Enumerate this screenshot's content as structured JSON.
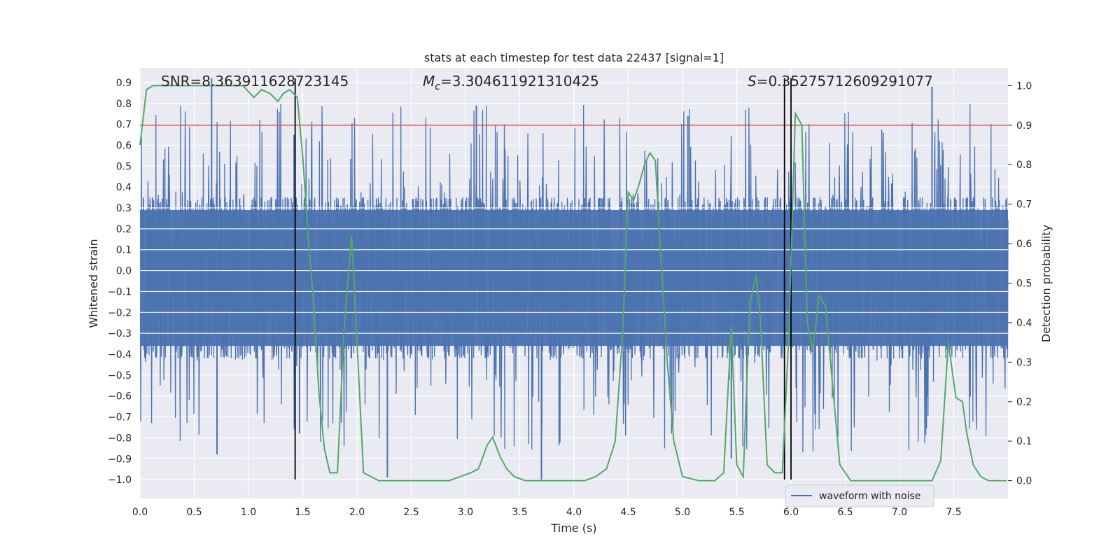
{
  "chart_data": {
    "type": "line",
    "title": "stats at each timestep for test data 22437 [signal=1]",
    "xlabel": "Time (s)",
    "ylabel_left": "Whitened strain",
    "ylabel_right": "Detection probability",
    "xlim": [
      0.0,
      8.0
    ],
    "ylim_left": [
      -1.09,
      0.97
    ],
    "ylim_right": [
      -0.045,
      1.045
    ],
    "xticks": [
      "0.0",
      "0.5",
      "1.0",
      "1.5",
      "2.0",
      "2.5",
      "3.0",
      "3.5",
      "4.0",
      "4.5",
      "5.0",
      "5.5",
      "6.0",
      "6.5",
      "7.0",
      "7.5"
    ],
    "yticks_left": [
      "-1.0",
      "-0.9",
      "-0.8",
      "-0.7",
      "-0.6",
      "-0.5",
      "-0.4",
      "-0.3",
      "-0.2",
      "-0.1",
      "0.0",
      "0.1",
      "0.2",
      "0.3",
      "0.4",
      "0.5",
      "0.6",
      "0.7",
      "0.8",
      "0.9"
    ],
    "yticks_right": [
      "0.0",
      "0.1",
      "0.2",
      "0.3",
      "0.4",
      "0.5",
      "0.6",
      "0.7",
      "0.8",
      "0.9",
      "1.0"
    ],
    "annotations": [
      {
        "text": "SNR=8.363911628723145"
      },
      {
        "text": "=3.304611921310425",
        "prefix": "M",
        "sub": "c"
      },
      {
        "text": "=0.35275712609291077",
        "prefix": "S"
      }
    ],
    "threshold": {
      "value": 0.9,
      "axis": "right",
      "color": "#c44e52"
    },
    "vlines": [
      {
        "x": 1.43,
        "ymin": -1.0,
        "ymax": 0.92
      },
      {
        "x": 5.94,
        "ymin": -1.0,
        "ymax": 0.92
      },
      {
        "x": 6.0,
        "ymin": -1.0,
        "ymax": 0.92
      }
    ],
    "series": [
      {
        "name": "waveform with noise",
        "color": "#4c72b0",
        "axis": "left",
        "description": "dense noisy whitened strain trace, core band about -0.42 to 0.35 with spikes to +0.88 and -1.0",
        "n_samples": 2400,
        "seed": 22437,
        "band": [
          -0.42,
          0.35
        ],
        "spikes_up": [
          [
            0.66,
            0.92
          ],
          [
            1.42,
            0.65
          ],
          [
            3.1,
            0.79
          ],
          [
            7.3,
            0.88
          ],
          [
            5.05,
            0.74
          ]
        ],
        "spikes_down": [
          [
            0.71,
            -0.88
          ],
          [
            2.28,
            -0.99
          ],
          [
            3.7,
            -1.0
          ],
          [
            1.47,
            -0.78
          ],
          [
            5.45,
            -0.9
          ]
        ]
      },
      {
        "name": "detection probability",
        "color": "#55a868",
        "axis": "right",
        "x": [
          0.0,
          0.06,
          0.12,
          0.2,
          0.3,
          0.5,
          0.7,
          0.95,
          1.05,
          1.12,
          1.2,
          1.27,
          1.32,
          1.38,
          1.45,
          1.5,
          1.55,
          1.6,
          1.65,
          1.7,
          1.75,
          1.82,
          1.88,
          1.95,
          2.0,
          2.06,
          2.2,
          2.3,
          2.5,
          2.7,
          2.85,
          2.95,
          3.05,
          3.12,
          3.2,
          3.25,
          3.32,
          3.38,
          3.45,
          3.55,
          3.7,
          3.9,
          4.1,
          4.2,
          4.3,
          4.38,
          4.45,
          4.5,
          4.55,
          4.6,
          4.65,
          4.7,
          4.75,
          4.8,
          4.86,
          4.92,
          5.0,
          5.15,
          5.3,
          5.38,
          5.45,
          5.5,
          5.56,
          5.62,
          5.68,
          5.72,
          5.78,
          5.85,
          5.92,
          5.98,
          6.04,
          6.1,
          6.15,
          6.2,
          6.26,
          6.32,
          6.38,
          6.45,
          6.55,
          6.7,
          6.9,
          7.05,
          7.15,
          7.3,
          7.38,
          7.45,
          7.52,
          7.58,
          7.62,
          7.68,
          7.75,
          7.82,
          7.9,
          7.99
        ],
        "values": [
          0.85,
          0.99,
          1.0,
          1.0,
          1.0,
          1.0,
          1.0,
          1.0,
          0.97,
          0.99,
          0.98,
          0.96,
          0.98,
          0.99,
          0.97,
          0.82,
          0.62,
          0.45,
          0.22,
          0.08,
          0.02,
          0.02,
          0.38,
          0.62,
          0.35,
          0.02,
          0.0,
          0.0,
          0.0,
          0.0,
          0.0,
          0.01,
          0.02,
          0.03,
          0.09,
          0.11,
          0.06,
          0.03,
          0.01,
          0.0,
          0.0,
          0.0,
          0.0,
          0.01,
          0.03,
          0.1,
          0.38,
          0.73,
          0.71,
          0.75,
          0.8,
          0.83,
          0.81,
          0.57,
          0.3,
          0.1,
          0.01,
          0.0,
          0.0,
          0.02,
          0.39,
          0.04,
          0.01,
          0.45,
          0.52,
          0.4,
          0.04,
          0.02,
          0.02,
          0.37,
          0.93,
          0.9,
          0.4,
          0.33,
          0.47,
          0.44,
          0.25,
          0.04,
          0.0,
          0.0,
          0.0,
          0.0,
          0.0,
          0.0,
          0.05,
          0.35,
          0.21,
          0.2,
          0.12,
          0.04,
          0.01,
          0.0,
          0.0,
          0.0
        ]
      }
    ],
    "legend": [
      {
        "label": "waveform with noise",
        "color": "#4c72b0"
      }
    ],
    "legend_location": "lower-right",
    "grid": true,
    "background": "#eaeaf2"
  }
}
